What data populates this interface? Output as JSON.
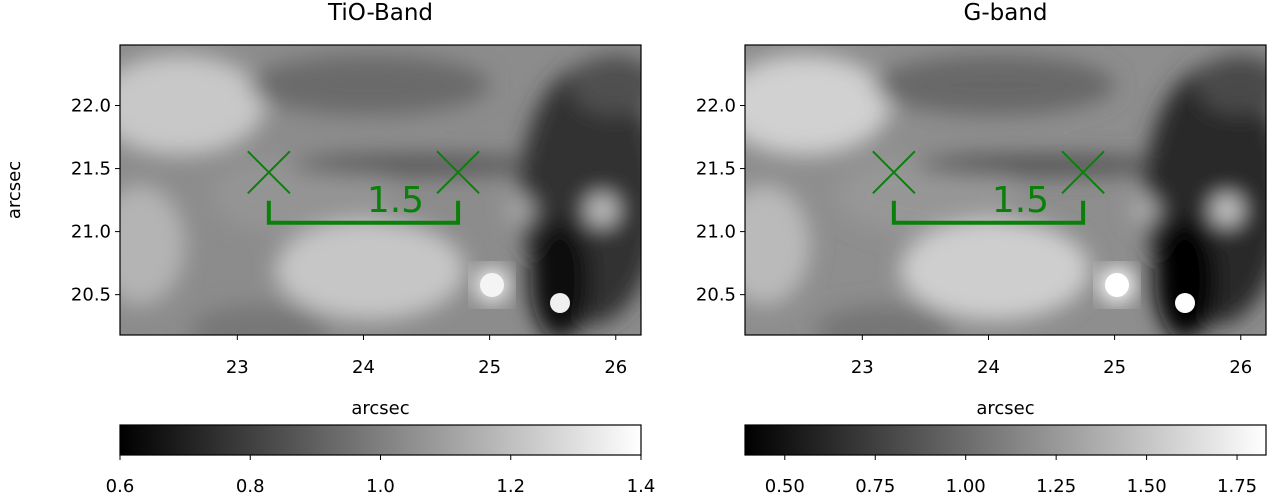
{
  "chart_data": [
    {
      "type": "image",
      "title": "TiO-Band",
      "xlabel": "arcsec",
      "ylabel": "arcsec",
      "cmap": "gray",
      "xlim": [
        22.07,
        26.2
      ],
      "xticks": [
        23,
        24,
        25,
        26
      ],
      "ylim": [
        20.18,
        22.48
      ],
      "yticks": [
        {
          "value": 20.5,
          "label": "20.5"
        },
        {
          "value": 21.0,
          "label": "21.0"
        },
        {
          "value": 21.5,
          "label": "21.5"
        },
        {
          "value": 22.0,
          "label": "22.0"
        }
      ],
      "markers": {
        "x": [
          23.25,
          24.75
        ],
        "y": [
          21.47,
          21.47
        ],
        "color": "#0a800a"
      },
      "bracket": {
        "x": [
          23.25,
          24.75
        ],
        "y": 21.07,
        "label": 1.5,
        "color": "#0a800a"
      },
      "colorbar": {
        "clim": [
          0.6,
          1.4
        ],
        "ticks": [
          0.6,
          0.8,
          {
            "value": 1.0,
            "label": "1.0"
          },
          1.2,
          1.4
        ]
      }
    },
    {
      "type": "image",
      "title": "G-band",
      "xlabel": "arcsec",
      "cmap": "gray",
      "xlim": [
        22.07,
        26.2
      ],
      "xticks": [
        23,
        24,
        25,
        26
      ],
      "ylim": [
        20.18,
        22.48
      ],
      "yticks": [
        {
          "value": 20.5,
          "label": "20.5"
        },
        {
          "value": 21.0,
          "label": "21.0"
        },
        {
          "value": 21.5,
          "label": "21.5"
        },
        {
          "value": 22.0,
          "label": "22.0"
        }
      ],
      "markers": {
        "x": [
          23.25,
          24.75
        ],
        "y": [
          21.47,
          21.47
        ],
        "color": "#0a800a"
      },
      "bracket": {
        "x": [
          23.25,
          24.75
        ],
        "y": 21.07,
        "label": 1.5,
        "color": "#0a800a"
      },
      "colorbar": {
        "clim": [
          0.39,
          1.83
        ],
        "ticks": [
          {
            "value": 0.5,
            "label": "0.50"
          },
          {
            "value": 0.75,
            "label": "0.75"
          },
          {
            "value": 1.0,
            "label": "1.00"
          },
          {
            "value": 1.25,
            "label": "1.25"
          },
          {
            "value": 1.5,
            "label": "1.50"
          },
          {
            "value": 1.75,
            "label": "1.75"
          }
        ]
      }
    }
  ]
}
